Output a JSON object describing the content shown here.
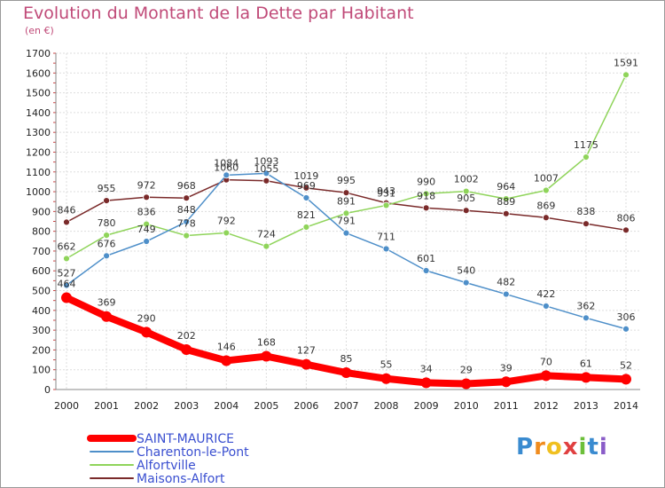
{
  "chart_data": {
    "type": "line",
    "title": "Evolution du Montant de la Dette par Habitant",
    "subtitle": "(en €)",
    "x": [
      "2000",
      "2001",
      "2002",
      "2003",
      "2004",
      "2005",
      "2006",
      "2007",
      "2008",
      "2009",
      "2010",
      "2011",
      "2012",
      "2013",
      "2014"
    ],
    "ylim": [
      0,
      1700
    ],
    "yticks": [
      0,
      100,
      200,
      300,
      400,
      500,
      600,
      700,
      800,
      900,
      1000,
      1100,
      1200,
      1300,
      1400,
      1500,
      1600,
      1700
    ],
    "grid": true,
    "legend_position": "bottom-left",
    "series": [
      {
        "name": "SAINT-MAURICE",
        "color": "#ff0000",
        "values": [
          464,
          369,
          290,
          202,
          146,
          168,
          127,
          85,
          55,
          34,
          29,
          39,
          70,
          61,
          52
        ]
      },
      {
        "name": "Charenton-le-Pont",
        "color": "#4e8fc9",
        "values": [
          527,
          676,
          749,
          848,
          1084,
          1093,
          969,
          791,
          711,
          601,
          540,
          482,
          422,
          362,
          306
        ]
      },
      {
        "name": "Alfortville",
        "color": "#8fd45a",
        "values": [
          662,
          780,
          836,
          778,
          792,
          724,
          821,
          891,
          931,
          990,
          1002,
          964,
          1007,
          1175,
          1591
        ]
      },
      {
        "name": "Maisons-Alfort",
        "color": "#7a2a2a",
        "values": [
          846,
          955,
          972,
          968,
          1060,
          1055,
          1019,
          995,
          943,
          918,
          905,
          889,
          869,
          838,
          806
        ]
      }
    ]
  },
  "logo": {
    "letters": [
      "P",
      "r",
      "o",
      "x",
      "i",
      "t",
      "i"
    ]
  }
}
